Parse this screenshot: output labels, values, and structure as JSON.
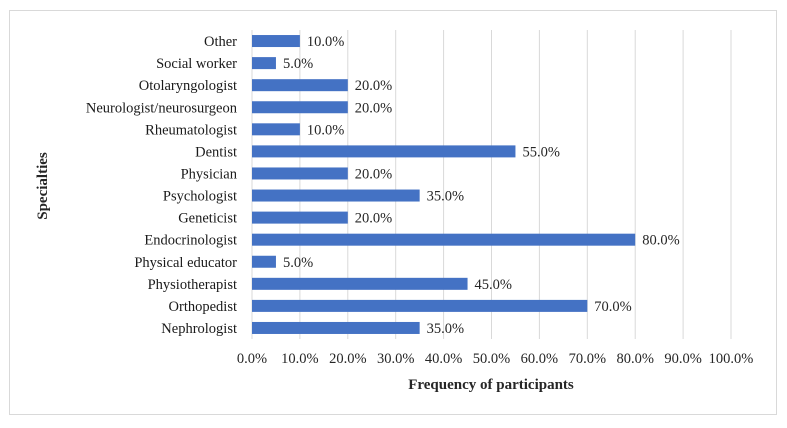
{
  "chart_data": {
    "type": "bar",
    "orientation": "horizontal",
    "categories": [
      "Other",
      "Social worker",
      "Otolaryngologist",
      "Neurologist/neurosurgeon",
      "Rheumatologist",
      "Dentist",
      "Physician",
      "Psychologist",
      "Geneticist",
      "Endocrinologist",
      "Physical educator",
      "Physiotherapist",
      "Orthopedist",
      "Nephrologist"
    ],
    "values": [
      10,
      5,
      20,
      20,
      10,
      55,
      20,
      35,
      20,
      80,
      5,
      45,
      70,
      35
    ],
    "value_labels": [
      "10.0%",
      "5.0%",
      "20.0%",
      "20.0%",
      "10.0%",
      "55.0%",
      "20.0%",
      "35.0%",
      "20.0%",
      "80.0%",
      "5.0%",
      "45.0%",
      "70.0%",
      "35.0%"
    ],
    "x_ticks": [
      "0.0%",
      "10.0%",
      "20.0%",
      "30.0%",
      "40.0%",
      "50.0%",
      "60.0%",
      "70.0%",
      "80.0%",
      "90.0%",
      "100.0%"
    ],
    "xlim": [
      0,
      100
    ],
    "xlabel": "Frequency of participants",
    "ylabel": "Specialties",
    "grid": true,
    "bar_color": "#4472c4",
    "grid_color": "#d9d9d9"
  }
}
